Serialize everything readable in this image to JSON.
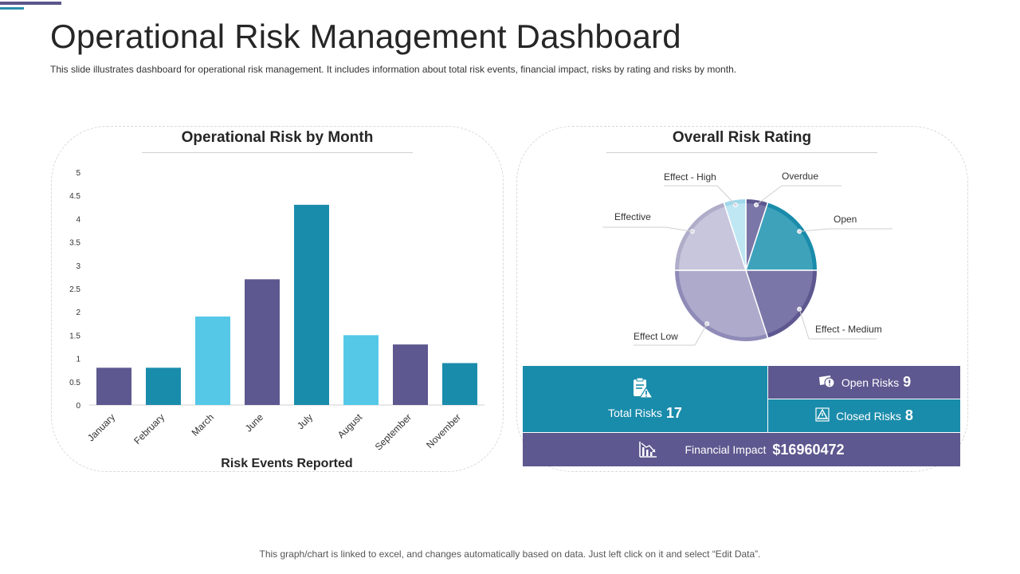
{
  "header": {
    "title": "Operational Risk Management Dashboard",
    "subtitle": "This slide illustrates dashboard for operational risk management. It includes information about total risk events, financial impact, risks by rating and risks by month."
  },
  "footer": {
    "note": "This graph/chart is linked to excel, and changes automatically based on data. Just left click on it and select “Edit Data”."
  },
  "chart_data": [
    {
      "type": "bar",
      "title": "Operational Risk by Month",
      "xlabel": "Risk Events Reported",
      "ylabel": "",
      "ylim": [
        0,
        5
      ],
      "yticks": [
        "0",
        "0.5",
        "1",
        "1.5",
        "2",
        "2.5",
        "3",
        "3.5",
        "4",
        "4.5",
        "5"
      ],
      "grid": false,
      "categories": [
        "January",
        "February",
        "March",
        "June",
        "July",
        "August",
        "September",
        "November"
      ],
      "values": [
        0.8,
        0.8,
        1.9,
        2.7,
        4.3,
        1.5,
        1.3,
        0.9
      ],
      "colors": [
        "#5d588f",
        "#1a8cab",
        "#55c8e8",
        "#5d588f",
        "#1a8cab",
        "#55c8e8",
        "#5d588f",
        "#1a8cab"
      ]
    },
    {
      "type": "pie",
      "title": "Overall Risk Rating",
      "labels": [
        "Overdue",
        "Open",
        "Effect - Medium",
        "Effect Low",
        "Effective",
        "Effect - High"
      ],
      "values": [
        5,
        20,
        20,
        30,
        20,
        5
      ],
      "colors": [
        "#7b76a8",
        "#3ea2bb",
        "#7b76a8",
        "#aeaacb",
        "#c8c6dc",
        "#bfe6f3"
      ],
      "edge_colors": [
        "#5d588f",
        "#1a8cab",
        "#5d588f",
        "#8f8bb8",
        "#b0adc9",
        "#9fd8ea"
      ]
    }
  ],
  "stats": {
    "total_label": "Total Risks",
    "total_value": "17",
    "open_label": "Open Risks",
    "open_value": "9",
    "closed_label": "Closed Risks",
    "closed_value": "8",
    "financial_label": "Financial Impact",
    "financial_value": "$16960472",
    "icons": {
      "total": "clipboard-warning-icon",
      "open": "money-alert-icon",
      "closed": "triangle-alert-icon",
      "financial": "declining-chart-icon"
    }
  }
}
